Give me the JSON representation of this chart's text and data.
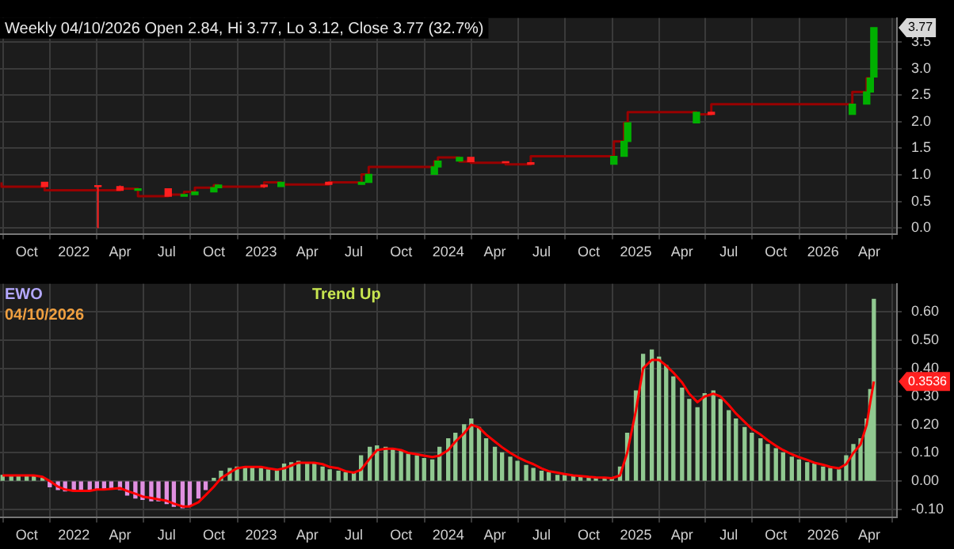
{
  "chart_data": [
    {
      "type": "candlestick",
      "title": "Weekly 04/10/2026 Open 2.84, Hi 3.77, Lo 3.12, Close 3.77 (32.7%)",
      "xlim": [
        "2021-08-10",
        "2026-05-25"
      ],
      "xticks": [
        {
          "value": "2021-10-01",
          "label": "Oct"
        },
        {
          "value": "2022-01-01",
          "label": "2022"
        },
        {
          "value": "2022-04-01",
          "label": "Apr"
        },
        {
          "value": "2022-07-01",
          "label": "Jul"
        },
        {
          "value": "2022-10-01",
          "label": "Oct"
        },
        {
          "value": "2023-01-01",
          "label": "2023"
        },
        {
          "value": "2023-04-01",
          "label": "Apr"
        },
        {
          "value": "2023-07-01",
          "label": "Jul"
        },
        {
          "value": "2023-10-01",
          "label": "Oct"
        },
        {
          "value": "2024-01-01",
          "label": "2024"
        },
        {
          "value": "2024-04-01",
          "label": "Apr"
        },
        {
          "value": "2024-07-01",
          "label": "Jul"
        },
        {
          "value": "2024-10-01",
          "label": "Oct"
        },
        {
          "value": "2025-01-01",
          "label": "2025"
        },
        {
          "value": "2025-04-01",
          "label": "Apr"
        },
        {
          "value": "2025-07-01",
          "label": "Jul"
        },
        {
          "value": "2025-10-01",
          "label": "Oct"
        },
        {
          "value": "2026-01-01",
          "label": "2026"
        },
        {
          "value": "2026-04-01",
          "label": "Apr"
        }
      ],
      "ylim": [
        -0.12,
        3.95
      ],
      "yticks": [
        {
          "value": 0,
          "label": "0.0"
        },
        0.5,
        {
          "value": 1,
          "label": "1.0"
        },
        1.5,
        {
          "value": 2,
          "label": "2.0"
        },
        2.5,
        {
          "value": 3,
          "label": "3.0"
        },
        3.5
      ],
      "grid": true,
      "legend": false,
      "annotations": [
        "3.77"
      ],
      "series": [
        {
          "type": "step",
          "color": "#990000",
          "x": [
            "2021-08-13",
            "2021-11-05",
            "2022-04-01",
            "2022-05-06",
            "2022-07-04",
            "2022-08-04",
            "2022-08-25",
            "2022-10-01",
            "2022-10-10",
            "2023-01-07",
            "2023-02-09",
            "2023-05-13",
            "2023-07-16",
            "2023-07-30",
            "2023-12-05",
            "2023-12-12",
            "2024-01-23",
            "2024-02-14",
            "2024-04-22",
            "2024-06-10",
            "2024-11-19",
            "2024-12-09",
            "2024-12-16",
            "2025-04-29",
            "2025-05-28",
            "2026-02-27",
            "2026-03-27",
            "2026-04-03"
          ],
          "values": [
            0.86,
            0.78,
            0.71,
            0.74,
            0.6,
            0.63,
            0.68,
            0.76,
            0.81,
            0.78,
            0.86,
            0.82,
            0.86,
            1.01,
            1.15,
            1.26,
            1.33,
            1.25,
            1.23,
            1.2,
            1.35,
            1.63,
            1.98,
            2.18,
            2.14,
            2.33,
            2.56,
            2.82
          ]
        },
        {
          "x": [
            "2021-11-05",
            "2022-02-17",
            "2022-04-01",
            "2022-05-06",
            "2022-07-04",
            "2022-08-04",
            "2022-08-25",
            "2022-10-01",
            "2022-10-10",
            "2023-01-07",
            "2023-02-09",
            "2023-05-13",
            "2023-07-16",
            "2023-07-30",
            "2023-12-05",
            "2023-12-12",
            "2024-01-23",
            "2024-02-14",
            "2024-04-22",
            "2024-06-10",
            "2024-11-19",
            "2024-12-09",
            "2024-12-16",
            "2025-04-29",
            "2025-05-28",
            "2026-02-27",
            "2026-03-27",
            "2026-04-03",
            "2026-04-10"
          ],
          "ohlc": [
            [
              0.86,
              0.86,
              0.78,
              0.78
            ],
            [
              0.8,
              0.8,
              0.0,
              0.78
            ],
            [
              0.78,
              0.8,
              0.71,
              0.71
            ],
            [
              0.71,
              0.74,
              0.71,
              0.74
            ],
            [
              0.74,
              0.74,
              0.6,
              0.6
            ],
            [
              0.6,
              0.63,
              0.6,
              0.63
            ],
            [
              0.63,
              0.68,
              0.63,
              0.68
            ],
            [
              0.68,
              0.76,
              0.68,
              0.76
            ],
            [
              0.76,
              0.81,
              0.76,
              0.81
            ],
            [
              0.81,
              0.81,
              0.76,
              0.78
            ],
            [
              0.78,
              0.86,
              0.78,
              0.86
            ],
            [
              0.86,
              0.86,
              0.82,
              0.82
            ],
            [
              0.82,
              0.86,
              0.82,
              0.86
            ],
            [
              0.86,
              1.01,
              0.86,
              1.01
            ],
            [
              1.01,
              1.15,
              1.01,
              1.15
            ],
            [
              1.15,
              1.26,
              1.15,
              1.26
            ],
            [
              1.26,
              1.33,
              1.26,
              1.33
            ],
            [
              1.33,
              1.33,
              1.25,
              1.25
            ],
            [
              1.25,
              1.25,
              1.23,
              1.23
            ],
            [
              1.23,
              1.23,
              1.2,
              1.2
            ],
            [
              1.2,
              1.35,
              1.2,
              1.35
            ],
            [
              1.35,
              1.63,
              1.35,
              1.63
            ],
            [
              1.63,
              1.98,
              1.63,
              1.98
            ],
            [
              1.98,
              2.18,
              1.98,
              2.18
            ],
            [
              2.18,
              2.18,
              2.14,
              2.14
            ],
            [
              2.14,
              2.33,
              2.14,
              2.33
            ],
            [
              2.33,
              2.56,
              2.33,
              2.56
            ],
            [
              2.56,
              2.82,
              2.56,
              2.82
            ],
            [
              2.84,
              3.77,
              2.84,
              3.77
            ]
          ],
          "colors": [
            "#ff2020",
            "#ff2020",
            "#ff2020",
            "#00b000",
            "#ff2020",
            "#00b000",
            "#00b000",
            "#00b000",
            "#00b000",
            "#ff2020",
            "#00b000",
            "#ff2020",
            "#00b000",
            "#00b000",
            "#00b000",
            "#00b000",
            "#00b000",
            "#ff2020",
            "#ff2020",
            "#ff2020",
            "#00b000",
            "#00b000",
            "#00b000",
            "#00b000",
            "#ff2020",
            "#00b000",
            "#00b000",
            "#00b000",
            "#00b000"
          ]
        }
      ]
    },
    {
      "type": "bar",
      "title": "EWO",
      "subtitle": "04/10/2026",
      "xlim": [
        "2021-08-10",
        "2026-05-25"
      ],
      "xticks": [
        {
          "value": "2021-10-01",
          "label": "Oct"
        },
        {
          "value": "2022-01-01",
          "label": "2022"
        },
        {
          "value": "2022-04-01",
          "label": "Apr"
        },
        {
          "value": "2022-07-01",
          "label": "Jul"
        },
        {
          "value": "2022-10-01",
          "label": "Oct"
        },
        {
          "value": "2023-01-01",
          "label": "2023"
        },
        {
          "value": "2023-04-01",
          "label": "Apr"
        },
        {
          "value": "2023-07-01",
          "label": "Jul"
        },
        {
          "value": "2023-10-01",
          "label": "Oct"
        },
        {
          "value": "2024-01-01",
          "label": "2024"
        },
        {
          "value": "2024-04-01",
          "label": "Apr"
        },
        {
          "value": "2024-07-01",
          "label": "Jul"
        },
        {
          "value": "2024-10-01",
          "label": "Oct"
        },
        {
          "value": "2025-01-01",
          "label": "2025"
        },
        {
          "value": "2025-04-01",
          "label": "Apr"
        },
        {
          "value": "2025-07-01",
          "label": "Jul"
        },
        {
          "value": "2025-10-01",
          "label": "Oct"
        },
        {
          "value": "2026-01-01",
          "label": "2026"
        },
        {
          "value": "2026-04-01",
          "label": "Apr"
        }
      ],
      "ylim": [
        -0.13,
        0.7
      ],
      "yticks": [
        {
          "value": -0.1,
          "label": "-0.10"
        },
        {
          "value": 0,
          "label": "0.00"
        },
        {
          "value": 0.1,
          "label": "0.10"
        },
        {
          "value": 0.2,
          "label": "0.20"
        },
        {
          "value": 0.3,
          "label": "0.30"
        },
        {
          "value": 0.4,
          "label": "0.40"
        },
        {
          "value": 0.5,
          "label": "0.50"
        },
        {
          "value": 0.6,
          "label": "0.60"
        }
      ],
      "grid": true,
      "legend": false,
      "annotations": [
        "Trend Up",
        "0.3536"
      ],
      "x": [
        "2021-08-15",
        "2021-09-01",
        "2021-09-15",
        "2021-10-01",
        "2021-10-15",
        "2021-11-01",
        "2021-11-15",
        "2021-12-01",
        "2021-12-15",
        "2022-01-01",
        "2022-01-15",
        "2022-02-01",
        "2022-02-15",
        "2022-03-01",
        "2022-03-15",
        "2022-04-01",
        "2022-04-15",
        "2022-05-01",
        "2022-05-15",
        "2022-06-01",
        "2022-06-15",
        "2022-07-01",
        "2022-07-15",
        "2022-08-01",
        "2022-08-15",
        "2022-09-01",
        "2022-09-15",
        "2022-10-01",
        "2022-10-15",
        "2022-11-01",
        "2022-11-15",
        "2022-12-01",
        "2022-12-15",
        "2023-01-01",
        "2023-01-15",
        "2023-02-01",
        "2023-02-15",
        "2023-03-01",
        "2023-03-15",
        "2023-04-01",
        "2023-04-15",
        "2023-05-01",
        "2023-05-15",
        "2023-06-01",
        "2023-06-15",
        "2023-07-01",
        "2023-07-15",
        "2023-08-01",
        "2023-08-15",
        "2023-09-01",
        "2023-09-15",
        "2023-10-01",
        "2023-10-15",
        "2023-11-01",
        "2023-11-15",
        "2023-12-01",
        "2023-12-15",
        "2024-01-01",
        "2024-01-15",
        "2024-02-01",
        "2024-02-15",
        "2024-03-01",
        "2024-03-15",
        "2024-04-01",
        "2024-04-15",
        "2024-05-01",
        "2024-05-15",
        "2024-06-01",
        "2024-06-15",
        "2024-07-01",
        "2024-07-15",
        "2024-08-01",
        "2024-08-15",
        "2024-09-01",
        "2024-09-15",
        "2024-10-01",
        "2024-10-15",
        "2024-11-01",
        "2024-11-15",
        "2024-12-01",
        "2024-12-15",
        "2025-01-01",
        "2025-01-15",
        "2025-02-01",
        "2025-02-15",
        "2025-03-01",
        "2025-03-15",
        "2025-04-01",
        "2025-04-15",
        "2025-05-01",
        "2025-05-15",
        "2025-06-01",
        "2025-06-15",
        "2025-07-01",
        "2025-07-15",
        "2025-08-01",
        "2025-08-15",
        "2025-09-01",
        "2025-09-15",
        "2025-10-01",
        "2025-10-15",
        "2025-11-01",
        "2025-11-15",
        "2025-12-01",
        "2025-12-15",
        "2026-01-01",
        "2026-01-15",
        "2026-02-01",
        "2026-02-15",
        "2026-03-01",
        "2026-03-15",
        "2026-03-27",
        "2026-04-03",
        "2026-04-10"
      ],
      "series": [
        {
          "values": [
            0.02,
            0.02,
            0.02,
            0.02,
            0.02,
            0.01,
            -0.02,
            -0.03,
            -0.035,
            -0.035,
            -0.035,
            -0.03,
            -0.03,
            -0.03,
            -0.025,
            -0.03,
            -0.05,
            -0.06,
            -0.065,
            -0.07,
            -0.07,
            -0.08,
            -0.09,
            -0.095,
            -0.085,
            -0.06,
            -0.03,
            0.01,
            0.035,
            0.045,
            0.05,
            0.05,
            0.05,
            0.045,
            0.04,
            0.035,
            0.06,
            0.065,
            0.07,
            0.065,
            0.06,
            0.05,
            0.04,
            0.035,
            0.03,
            0.03,
            0.09,
            0.12,
            0.125,
            0.12,
            0.115,
            0.105,
            0.095,
            0.09,
            0.08,
            0.075,
            0.12,
            0.15,
            0.17,
            0.2,
            0.22,
            0.19,
            0.15,
            0.12,
            0.1,
            0.085,
            0.07,
            0.055,
            0.045,
            0.035,
            0.03,
            0.02,
            0.02,
            0.015,
            0.015,
            0.015,
            0.012,
            0.01,
            0.012,
            0.05,
            0.17,
            0.32,
            0.45,
            0.465,
            0.44,
            0.41,
            0.37,
            0.33,
            0.29,
            0.26,
            0.31,
            0.32,
            0.29,
            0.25,
            0.22,
            0.19,
            0.17,
            0.15,
            0.13,
            0.115,
            0.1,
            0.085,
            0.075,
            0.065,
            0.06,
            0.05,
            0.045,
            0.04,
            0.09,
            0.13,
            0.15,
            0.22,
            0.325,
            0.645
          ],
          "colors": [
            "#90c890",
            "#90c890",
            "#90c890",
            "#90c890",
            "#90c890",
            "#90c890",
            "#e090e0",
            "#e090e0",
            "#e090e0",
            "#e090e0",
            "#e090e0",
            "#e090e0",
            "#e090e0",
            "#e090e0",
            "#e090e0",
            "#e090e0",
            "#e090e0",
            "#e090e0",
            "#e090e0",
            "#e090e0",
            "#e090e0",
            "#e090e0",
            "#e090e0",
            "#e090e0",
            "#e090e0",
            "#e090e0",
            "#e090e0",
            "#90c890",
            "#90c890",
            "#90c890",
            "#90c890",
            "#90c890",
            "#90c890",
            "#90c890",
            "#90c890",
            "#90c890",
            "#90c890",
            "#90c890",
            "#90c890",
            "#90c890",
            "#90c890",
            "#90c890",
            "#90c890",
            "#90c890",
            "#90c890",
            "#90c890",
            "#90c890",
            "#90c890",
            "#90c890",
            "#90c890",
            "#90c890",
            "#90c890",
            "#90c890",
            "#90c890",
            "#90c890",
            "#90c890",
            "#90c890",
            "#90c890",
            "#90c890",
            "#90c890",
            "#90c890",
            "#90c890",
            "#90c890",
            "#90c890",
            "#90c890",
            "#90c890",
            "#90c890",
            "#90c890",
            "#90c890",
            "#90c890",
            "#90c890",
            "#90c890",
            "#90c890",
            "#90c890",
            "#90c890",
            "#90c890",
            "#90c890",
            "#90c890",
            "#90c890",
            "#90c890",
            "#90c890",
            "#90c890",
            "#90c890",
            "#90c890",
            "#90c890",
            "#90c890",
            "#90c890",
            "#90c890",
            "#90c890",
            "#90c890",
            "#90c890",
            "#90c890",
            "#90c890",
            "#90c890",
            "#90c890",
            "#90c890",
            "#90c890",
            "#90c890",
            "#90c890",
            "#90c890",
            "#90c890",
            "#90c890",
            "#90c890",
            "#90c890",
            "#90c890",
            "#90c890",
            "#90c890",
            "#90c890",
            "#90c890",
            "#90c890",
            "#90c890",
            "#90c890",
            "#90c890",
            "#90c890"
          ]
        },
        {
          "type": "line",
          "color": "#ff0000",
          "values": [
            0.02,
            0.02,
            0.02,
            0.02,
            0.02,
            0.015,
            0.0,
            -0.02,
            -0.03,
            -0.035,
            -0.035,
            -0.035,
            -0.03,
            -0.03,
            -0.028,
            -0.025,
            -0.035,
            -0.045,
            -0.055,
            -0.06,
            -0.065,
            -0.07,
            -0.08,
            -0.09,
            -0.09,
            -0.075,
            -0.05,
            -0.02,
            0.01,
            0.03,
            0.045,
            0.05,
            0.05,
            0.05,
            0.045,
            0.04,
            0.045,
            0.055,
            0.065,
            0.065,
            0.065,
            0.06,
            0.05,
            0.045,
            0.035,
            0.03,
            0.04,
            0.08,
            0.11,
            0.115,
            0.115,
            0.11,
            0.1,
            0.095,
            0.09,
            0.085,
            0.09,
            0.11,
            0.14,
            0.17,
            0.2,
            0.19,
            0.165,
            0.14,
            0.12,
            0.1,
            0.085,
            0.07,
            0.06,
            0.045,
            0.035,
            0.03,
            0.025,
            0.02,
            0.018,
            0.015,
            0.013,
            0.012,
            0.01,
            0.02,
            0.1,
            0.25,
            0.4,
            0.43,
            0.43,
            0.41,
            0.385,
            0.35,
            0.31,
            0.28,
            0.3,
            0.31,
            0.3,
            0.27,
            0.24,
            0.21,
            0.185,
            0.165,
            0.145,
            0.125,
            0.11,
            0.095,
            0.085,
            0.075,
            0.065,
            0.058,
            0.05,
            0.045,
            0.06,
            0.1,
            0.13,
            0.2,
            0.28,
            0.3536
          ]
        }
      ]
    }
  ]
}
